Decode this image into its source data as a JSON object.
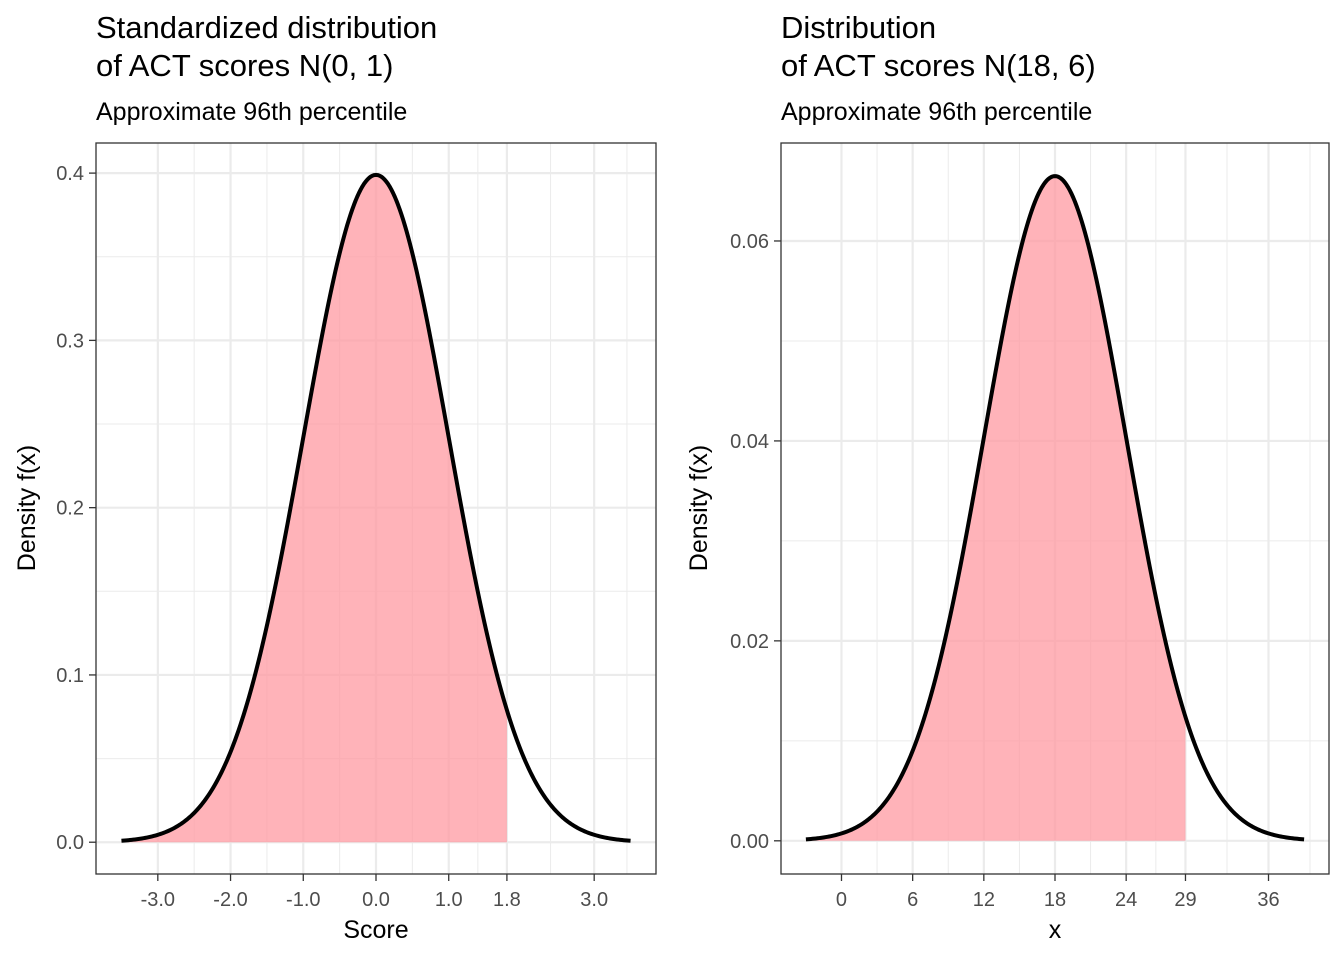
{
  "chart_data": [
    {
      "type": "area",
      "title_lines": [
        "Standardized distribution",
        "of ACT scores N(0, 1)"
      ],
      "subtitle": "Approximate 96th percentile",
      "xlabel": "Score",
      "ylabel": "Density f(x)",
      "distribution": {
        "family": "normal",
        "mean": 0,
        "sd": 1
      },
      "curve_range": [
        -3.5,
        3.5
      ],
      "shaded_range": [
        -3.5,
        1.8
      ],
      "xlim": [
        -3.85,
        3.85
      ],
      "ylim": [
        -0.019,
        0.418
      ],
      "x_ticks": [
        -3,
        -2,
        -1,
        0,
        1,
        1.8,
        3
      ],
      "x_tick_labels": [
        "-3.0",
        "-2.0",
        "-1.0",
        "0.0",
        "1.0",
        "1.8",
        "3.0"
      ],
      "x_minor_ticks": [
        -2.5,
        -1.5,
        -0.5,
        0.5,
        1.4,
        2.4,
        3.45
      ],
      "y_ticks": [
        0,
        0.1,
        0.2,
        0.3,
        0.4
      ],
      "y_tick_labels": [
        "0.0",
        "0.1",
        "0.2",
        "0.3",
        "0.4"
      ],
      "y_minor_ticks": [
        0.05,
        0.15,
        0.25,
        0.35
      ],
      "fill_color": "#ff9aa2",
      "line_color": "#000000"
    },
    {
      "type": "area",
      "title_lines": [
        "Distribution",
        "of ACT scores N(18, 6)"
      ],
      "subtitle": "Approximate 96th percentile",
      "xlabel": "x",
      "ylabel": "Density f(x)",
      "distribution": {
        "family": "normal",
        "mean": 18,
        "sd": 6
      },
      "curve_range": [
        -3,
        39
      ],
      "shaded_range": [
        -3,
        29
      ],
      "xlim": [
        -5.1,
        41.1
      ],
      "ylim": [
        -0.00332,
        0.0698
      ],
      "x_ticks": [
        0,
        6,
        12,
        18,
        24,
        29,
        36
      ],
      "x_tick_labels": [
        "0",
        "6",
        "12",
        "18",
        "24",
        "29",
        "36"
      ],
      "x_minor_ticks": [
        3,
        9,
        15,
        21,
        26.5,
        32.5,
        39.5
      ],
      "y_ticks": [
        0,
        0.02,
        0.04,
        0.06
      ],
      "y_tick_labels": [
        "0.00",
        "0.02",
        "0.04",
        "0.06"
      ],
      "y_minor_ticks": [
        0.01,
        0.03,
        0.05
      ],
      "fill_color": "#ff9aa2",
      "line_color": "#000000"
    }
  ]
}
